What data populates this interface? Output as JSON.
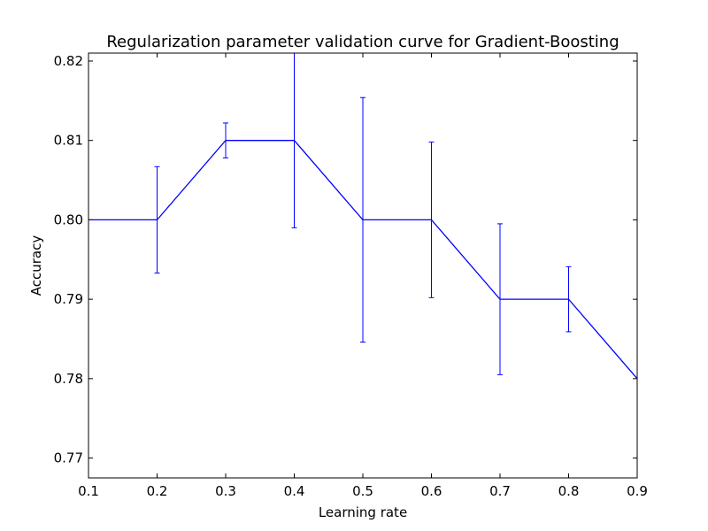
{
  "chart_data": {
    "type": "line",
    "title": "Regularization parameter validation curve for Gradient-Boosting",
    "xlabel": "Learning rate",
    "ylabel": "Accuracy",
    "xlim": [
      0.1,
      0.9
    ],
    "ylim": [
      0.7675,
      0.821
    ],
    "xticks": [
      0.1,
      0.2,
      0.3,
      0.4,
      0.5,
      0.6,
      0.7,
      0.8,
      0.9
    ],
    "xtick_labels": [
      "0.1",
      "0.2",
      "0.3",
      "0.4",
      "0.5",
      "0.6",
      "0.7",
      "0.8",
      "0.9"
    ],
    "yticks": [
      0.77,
      0.78,
      0.79,
      0.8,
      0.81,
      0.82
    ],
    "ytick_labels": [
      "0.77",
      "0.78",
      "0.79",
      "0.80",
      "0.81",
      "0.82"
    ],
    "grid": false,
    "line_color": "#0000ff",
    "series": [
      {
        "x": [
          0.1,
          0.2,
          0.3,
          0.4,
          0.5,
          0.6,
          0.7,
          0.8,
          0.9
        ],
        "y": [
          0.8,
          0.8,
          0.81,
          0.81,
          0.8,
          0.8,
          0.79,
          0.79,
          0.78
        ],
        "yerr": [
          0,
          0.0067,
          0.0022,
          0.011,
          0.0154,
          0.0098,
          0.0095,
          0.0041,
          0
        ]
      }
    ]
  }
}
